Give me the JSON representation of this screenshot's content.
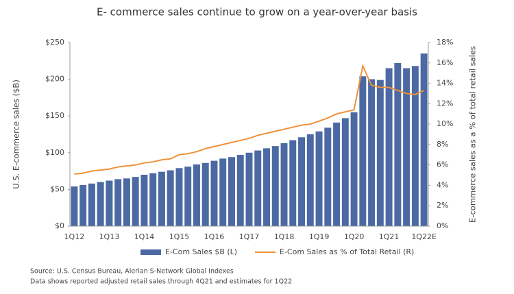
{
  "chart_data": {
    "type": "bar_line",
    "title": "E- commerce sales continue to grow on a year-over-year basis",
    "ylabel": "U.S. E-commerce sales ($B)",
    "y2label": "E-commerce sales as a % of total retail sales",
    "categories": [
      "1Q12",
      null,
      null,
      null,
      "1Q13",
      null,
      null,
      null,
      "1Q14",
      null,
      null,
      null,
      "1Q15",
      null,
      null,
      null,
      "1Q16",
      null,
      null,
      null,
      "1Q17",
      null,
      null,
      null,
      "1Q18",
      null,
      null,
      null,
      "1Q19",
      null,
      null,
      null,
      "1Q20",
      null,
      null,
      null,
      "1Q21",
      null,
      null,
      null,
      "1Q22E"
    ],
    "series": [
      {
        "name": "E-Com Sales $B (L)",
        "color": "#4b69a3",
        "type": "bar",
        "values": [
          54,
          56,
          58,
          60,
          62,
          64,
          65,
          67,
          70,
          72,
          74,
          76,
          79,
          81,
          84,
          86,
          89,
          92,
          94,
          97,
          100,
          103,
          106,
          109,
          113,
          117,
          121,
          125,
          129,
          134,
          141,
          147,
          155,
          204,
          200,
          199,
          215,
          222,
          215,
          218,
          235
        ]
      },
      {
        "name": "E-Com Sales as % of Total Retail (R)",
        "color": "#f0913a",
        "type": "line",
        "axis": "y2",
        "values": [
          5.1,
          5.2,
          5.4,
          5.5,
          5.6,
          5.8,
          5.9,
          6.0,
          6.2,
          6.3,
          6.5,
          6.6,
          7.0,
          7.1,
          7.3,
          7.6,
          7.8,
          8.0,
          8.2,
          8.4,
          8.6,
          8.9,
          9.1,
          9.3,
          9.5,
          9.7,
          9.9,
          10.0,
          10.3,
          10.6,
          11.0,
          11.2,
          11.4,
          15.7,
          13.8,
          13.6,
          13.6,
          13.3,
          13.0,
          12.9,
          13.3
        ]
      }
    ],
    "ylim": [
      0,
      250
    ],
    "yticks": [
      {
        "value": 0,
        "label": "$0"
      },
      {
        "value": 50,
        "label": "$50"
      },
      {
        "value": 100,
        "label": "$100"
      },
      {
        "value": 150,
        "label": "$150"
      },
      {
        "value": 200,
        "label": "$200"
      },
      {
        "value": 250,
        "label": "$250"
      }
    ],
    "y2lim": [
      0,
      18
    ],
    "y2ticks": [
      {
        "value": 0,
        "label": "0%"
      },
      {
        "value": 2,
        "label": "2%"
      },
      {
        "value": 4,
        "label": "4%"
      },
      {
        "value": 6,
        "label": "6%"
      },
      {
        "value": 8,
        "label": "8%"
      },
      {
        "value": 10,
        "label": "10%"
      },
      {
        "value": 12,
        "label": "12%"
      },
      {
        "value": 14,
        "label": "14%"
      },
      {
        "value": 16,
        "label": "16%"
      },
      {
        "value": 18,
        "label": "18%"
      }
    ],
    "legend": "bottom",
    "notes": [
      "Source: U.S. Census Bureau, Alerian S-Network Global Indexes",
      "Data shows reported adjusted retail sales through 4Q21 and estimates for 1Q22"
    ]
  }
}
